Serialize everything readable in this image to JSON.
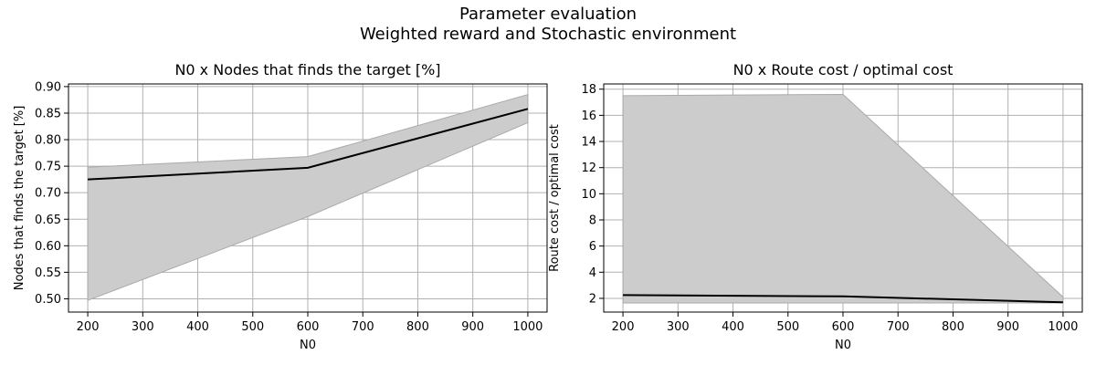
{
  "suptitle": [
    "Parameter evaluation",
    "Weighted reward and Stochastic environment"
  ],
  "colors": {
    "band_fill": "#cccccc",
    "band_edge": "#aaaaaa",
    "line": "#000000",
    "grid": "#b0b0b0"
  },
  "chart_data": [
    {
      "type": "line",
      "title": "N0 x Nodes that finds the target [%]",
      "xlabel": "N0",
      "ylabel": "Nodes that finds the target [%]",
      "x": [
        200,
        600,
        1000
      ],
      "series": [
        {
          "values": [
            0.725,
            0.747,
            0.858
          ],
          "lower": [
            0.497,
            0.655,
            0.832
          ],
          "upper": [
            0.748,
            0.768,
            0.885
          ]
        }
      ],
      "xlim": [
        165,
        1035
      ],
      "ylim": [
        0.475,
        0.905
      ],
      "xticks": [
        200,
        300,
        400,
        500,
        600,
        700,
        800,
        900,
        1000
      ],
      "yticks": [
        0.5,
        0.55,
        0.6,
        0.65,
        0.7,
        0.75,
        0.8,
        0.85,
        0.9
      ],
      "ytick_labels": [
        "0.50",
        "0.55",
        "0.60",
        "0.65",
        "0.70",
        "0.75",
        "0.80",
        "0.85",
        "0.90"
      ],
      "grid": true
    },
    {
      "type": "line",
      "title": "N0 x Route cost / optimal cost",
      "xlabel": "N0",
      "ylabel": "Route cost / optimal cost",
      "x": [
        200,
        600,
        1000
      ],
      "series": [
        {
          "values": [
            2.25,
            2.15,
            1.7
          ],
          "lower": [
            1.65,
            1.65,
            1.65
          ],
          "upper": [
            17.5,
            17.6,
            2.1
          ]
        }
      ],
      "xlim": [
        165,
        1035
      ],
      "ylim": [
        0.95,
        18.4
      ],
      "xticks": [
        200,
        300,
        400,
        500,
        600,
        700,
        800,
        900,
        1000
      ],
      "yticks": [
        2,
        4,
        6,
        8,
        10,
        12,
        14,
        16,
        18
      ],
      "ytick_labels": [
        "2",
        "4",
        "6",
        "8",
        "10",
        "12",
        "14",
        "16",
        "18"
      ],
      "grid": true
    }
  ]
}
